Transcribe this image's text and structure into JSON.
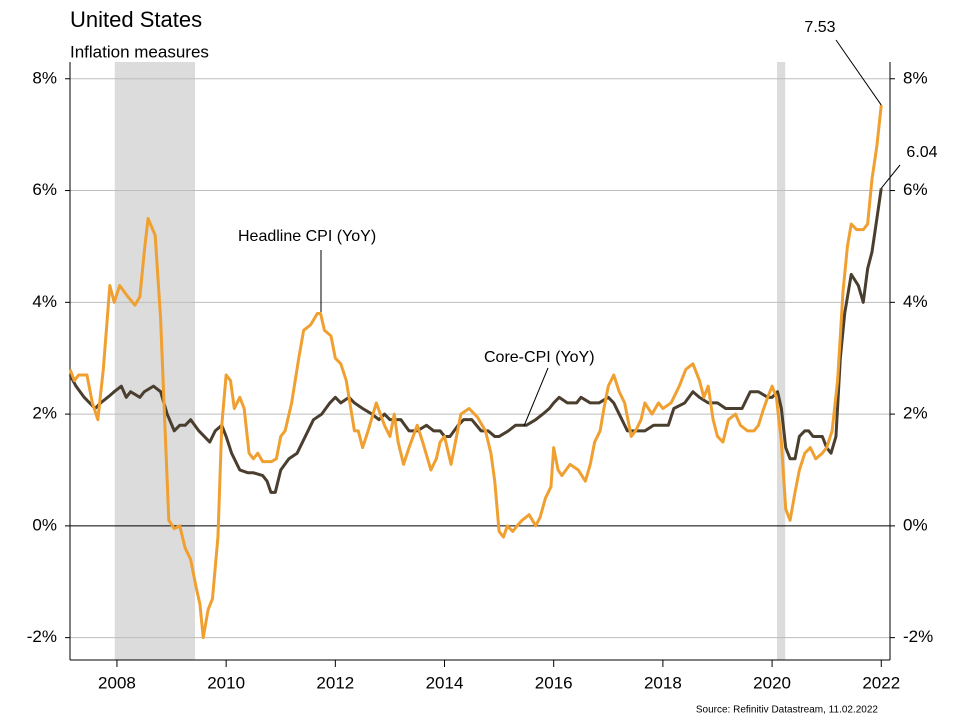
{
  "chart_data": {
    "type": "line",
    "title": "United States",
    "subtitle": "Inflation measures",
    "source": "Source: Refinitiv Datastream, 11.02.2022",
    "xlim": [
      2007.14,
      2022.16
    ],
    "xticks": [
      2008,
      2010,
      2012,
      2014,
      2016,
      2018,
      2020,
      2022
    ],
    "ylim": [
      -2.4,
      8.3
    ],
    "yticks": [
      {
        "value": -2,
        "label": "-2%"
      },
      {
        "value": 0,
        "label": "0%"
      },
      {
        "value": 2,
        "label": "2%"
      },
      {
        "value": 4,
        "label": "4%"
      },
      {
        "value": 6,
        "label": "6%"
      },
      {
        "value": 8,
        "label": "8%"
      }
    ],
    "grid": true,
    "shaded_periods": [
      [
        2007.96,
        2009.43
      ],
      [
        2020.09,
        2020.24
      ]
    ],
    "series": [
      {
        "name": "Headline CPI (YoY)",
        "color": "#f0a030",
        "x": [
          2007.14,
          2007.22,
          2007.3,
          2007.45,
          2007.55,
          2007.65,
          2007.75,
          2007.87,
          2007.95,
          2008.05,
          2008.2,
          2008.33,
          2008.42,
          2008.5,
          2008.57,
          2008.7,
          2008.8,
          2008.87,
          2008.95,
          2009.05,
          2009.15,
          2009.25,
          2009.35,
          2009.45,
          2009.52,
          2009.58,
          2009.67,
          2009.75,
          2009.85,
          2009.92,
          2010.0,
          2010.08,
          2010.15,
          2010.25,
          2010.33,
          2010.42,
          2010.5,
          2010.58,
          2010.67,
          2010.83,
          2010.92,
          2011.0,
          2011.08,
          2011.2,
          2011.33,
          2011.42,
          2011.55,
          2011.67,
          2011.73,
          2011.8,
          2011.92,
          2012.0,
          2012.1,
          2012.2,
          2012.35,
          2012.42,
          2012.5,
          2012.6,
          2012.75,
          2012.9,
          2013.0,
          2013.08,
          2013.15,
          2013.25,
          2013.35,
          2013.5,
          2013.6,
          2013.75,
          2013.85,
          2013.92,
          2014.0,
          2014.12,
          2014.2,
          2014.3,
          2014.45,
          2014.6,
          2014.75,
          2014.85,
          2014.92,
          2015.0,
          2015.08,
          2015.15,
          2015.25,
          2015.33,
          2015.42,
          2015.55,
          2015.67,
          2015.75,
          2015.85,
          2015.95,
          2016.0,
          2016.08,
          2016.15,
          2016.3,
          2016.45,
          2016.58,
          2016.67,
          2016.75,
          2016.85,
          2016.92,
          2017.0,
          2017.1,
          2017.2,
          2017.3,
          2017.42,
          2017.5,
          2017.6,
          2017.67,
          2017.8,
          2017.92,
          2018.0,
          2018.15,
          2018.3,
          2018.42,
          2018.55,
          2018.67,
          2018.75,
          2018.83,
          2018.92,
          2019.0,
          2019.1,
          2019.2,
          2019.33,
          2019.42,
          2019.55,
          2019.67,
          2019.75,
          2019.83,
          2019.92,
          2020.0,
          2020.08,
          2020.17,
          2020.25,
          2020.33,
          2020.42,
          2020.5,
          2020.6,
          2020.7,
          2020.8,
          2020.92,
          2021.0,
          2021.1,
          2021.2,
          2021.3,
          2021.38,
          2021.45,
          2021.55,
          2021.67,
          2021.75,
          2021.83,
          2021.92,
          2022.0
        ],
        "values": [
          2.8,
          2.6,
          2.7,
          2.7,
          2.2,
          1.9,
          2.8,
          4.3,
          4.0,
          4.3,
          4.1,
          3.95,
          4.1,
          4.9,
          5.5,
          5.2,
          3.7,
          2.0,
          0.1,
          -0.05,
          0.0,
          -0.4,
          -0.6,
          -1.1,
          -1.4,
          -2.0,
          -1.5,
          -1.3,
          -0.2,
          1.8,
          2.7,
          2.6,
          2.1,
          2.3,
          2.1,
          1.3,
          1.2,
          1.3,
          1.15,
          1.15,
          1.2,
          1.6,
          1.7,
          2.2,
          3.0,
          3.5,
          3.6,
          3.8,
          3.8,
          3.5,
          3.4,
          3.0,
          2.9,
          2.6,
          1.7,
          1.7,
          1.4,
          1.7,
          2.2,
          1.8,
          1.6,
          2.0,
          1.5,
          1.1,
          1.4,
          1.8,
          1.5,
          1.0,
          1.2,
          1.5,
          1.6,
          1.1,
          1.5,
          2.0,
          2.1,
          1.95,
          1.7,
          1.3,
          0.8,
          -0.1,
          -0.2,
          0.0,
          -0.1,
          0.0,
          0.1,
          0.2,
          0.0,
          0.15,
          0.5,
          0.7,
          1.4,
          1.0,
          0.9,
          1.1,
          1.0,
          0.8,
          1.1,
          1.5,
          1.7,
          2.1,
          2.5,
          2.7,
          2.4,
          2.2,
          1.6,
          1.7,
          1.9,
          2.2,
          2.0,
          2.2,
          2.1,
          2.2,
          2.5,
          2.8,
          2.9,
          2.6,
          2.3,
          2.5,
          1.9,
          1.6,
          1.5,
          1.9,
          2.0,
          1.8,
          1.7,
          1.7,
          1.8,
          2.05,
          2.3,
          2.5,
          2.3,
          1.5,
          0.3,
          0.1,
          0.6,
          1.0,
          1.3,
          1.4,
          1.2,
          1.3,
          1.4,
          1.7,
          2.6,
          4.2,
          5.0,
          5.4,
          5.3,
          5.3,
          5.4,
          6.2,
          6.8,
          7.53
        ]
      },
      {
        "name": "Core-CPI (YoY)",
        "color": "#4a3e2e",
        "x": [
          2007.14,
          2007.25,
          2007.4,
          2007.5,
          2007.6,
          2007.7,
          2007.83,
          2007.95,
          2008.08,
          2008.17,
          2008.25,
          2008.42,
          2008.5,
          2008.67,
          2008.8,
          2008.92,
          2009.05,
          2009.15,
          2009.25,
          2009.35,
          2009.5,
          2009.6,
          2009.7,
          2009.8,
          2009.92,
          2010.0,
          2010.1,
          2010.25,
          2010.4,
          2010.5,
          2010.67,
          2010.75,
          2010.82,
          2010.9,
          2011.0,
          2011.15,
          2011.3,
          2011.45,
          2011.6,
          2011.75,
          2011.9,
          2012.0,
          2012.1,
          2012.25,
          2012.35,
          2012.5,
          2012.67,
          2012.8,
          2012.9,
          2013.0,
          2013.2,
          2013.35,
          2013.5,
          2013.67,
          2013.8,
          2013.92,
          2014.0,
          2014.1,
          2014.25,
          2014.35,
          2014.5,
          2014.67,
          2014.8,
          2014.92,
          2015.0,
          2015.17,
          2015.3,
          2015.5,
          2015.67,
          2015.8,
          2015.92,
          2016.0,
          2016.1,
          2016.25,
          2016.42,
          2016.5,
          2016.67,
          2016.83,
          2017.0,
          2017.1,
          2017.2,
          2017.35,
          2017.5,
          2017.67,
          2017.83,
          2018.0,
          2018.1,
          2018.2,
          2018.4,
          2018.55,
          2018.67,
          2018.83,
          2019.0,
          2019.15,
          2019.3,
          2019.45,
          2019.6,
          2019.75,
          2019.92,
          2020.0,
          2020.1,
          2020.17,
          2020.25,
          2020.33,
          2020.42,
          2020.5,
          2020.6,
          2020.67,
          2020.75,
          2020.92,
          2021.0,
          2021.08,
          2021.17,
          2021.25,
          2021.33,
          2021.45,
          2021.58,
          2021.67,
          2021.75,
          2021.83,
          2021.92,
          2022.0
        ],
        "values": [
          2.7,
          2.5,
          2.3,
          2.2,
          2.1,
          2.2,
          2.3,
          2.4,
          2.5,
          2.3,
          2.4,
          2.3,
          2.4,
          2.5,
          2.4,
          2.0,
          1.7,
          1.8,
          1.8,
          1.9,
          1.7,
          1.6,
          1.5,
          1.7,
          1.8,
          1.6,
          1.3,
          1.0,
          0.95,
          0.95,
          0.9,
          0.8,
          0.6,
          0.6,
          1.0,
          1.2,
          1.3,
          1.6,
          1.9,
          2.0,
          2.2,
          2.3,
          2.2,
          2.3,
          2.2,
          2.1,
          2.0,
          1.9,
          2.0,
          1.9,
          1.9,
          1.7,
          1.7,
          1.8,
          1.7,
          1.7,
          1.6,
          1.6,
          1.8,
          1.9,
          1.9,
          1.7,
          1.7,
          1.6,
          1.6,
          1.7,
          1.8,
          1.8,
          1.9,
          2.0,
          2.1,
          2.2,
          2.3,
          2.2,
          2.2,
          2.3,
          2.2,
          2.2,
          2.3,
          2.2,
          2.0,
          1.7,
          1.7,
          1.7,
          1.8,
          1.8,
          1.8,
          2.1,
          2.2,
          2.4,
          2.3,
          2.2,
          2.2,
          2.1,
          2.1,
          2.1,
          2.4,
          2.4,
          2.3,
          2.3,
          2.4,
          2.1,
          1.4,
          1.2,
          1.2,
          1.6,
          1.7,
          1.7,
          1.6,
          1.6,
          1.4,
          1.3,
          1.6,
          3.0,
          3.8,
          4.5,
          4.3,
          4.0,
          4.6,
          4.9,
          5.5,
          6.04
        ]
      }
    ]
  }
}
